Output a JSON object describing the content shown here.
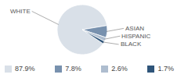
{
  "chart_data": {
    "type": "pie",
    "categories": [
      "WHITE",
      "ASIAN",
      "HISPANIC",
      "BLACK"
    ],
    "values": [
      87.9,
      7.8,
      2.6,
      1.7
    ],
    "value_labels": [
      "87.9%",
      "7.8%",
      "2.6%",
      "1.7%"
    ],
    "colors": [
      "#d9e0e8",
      "#7891ae",
      "#aebdcf",
      "#2f557a"
    ]
  }
}
